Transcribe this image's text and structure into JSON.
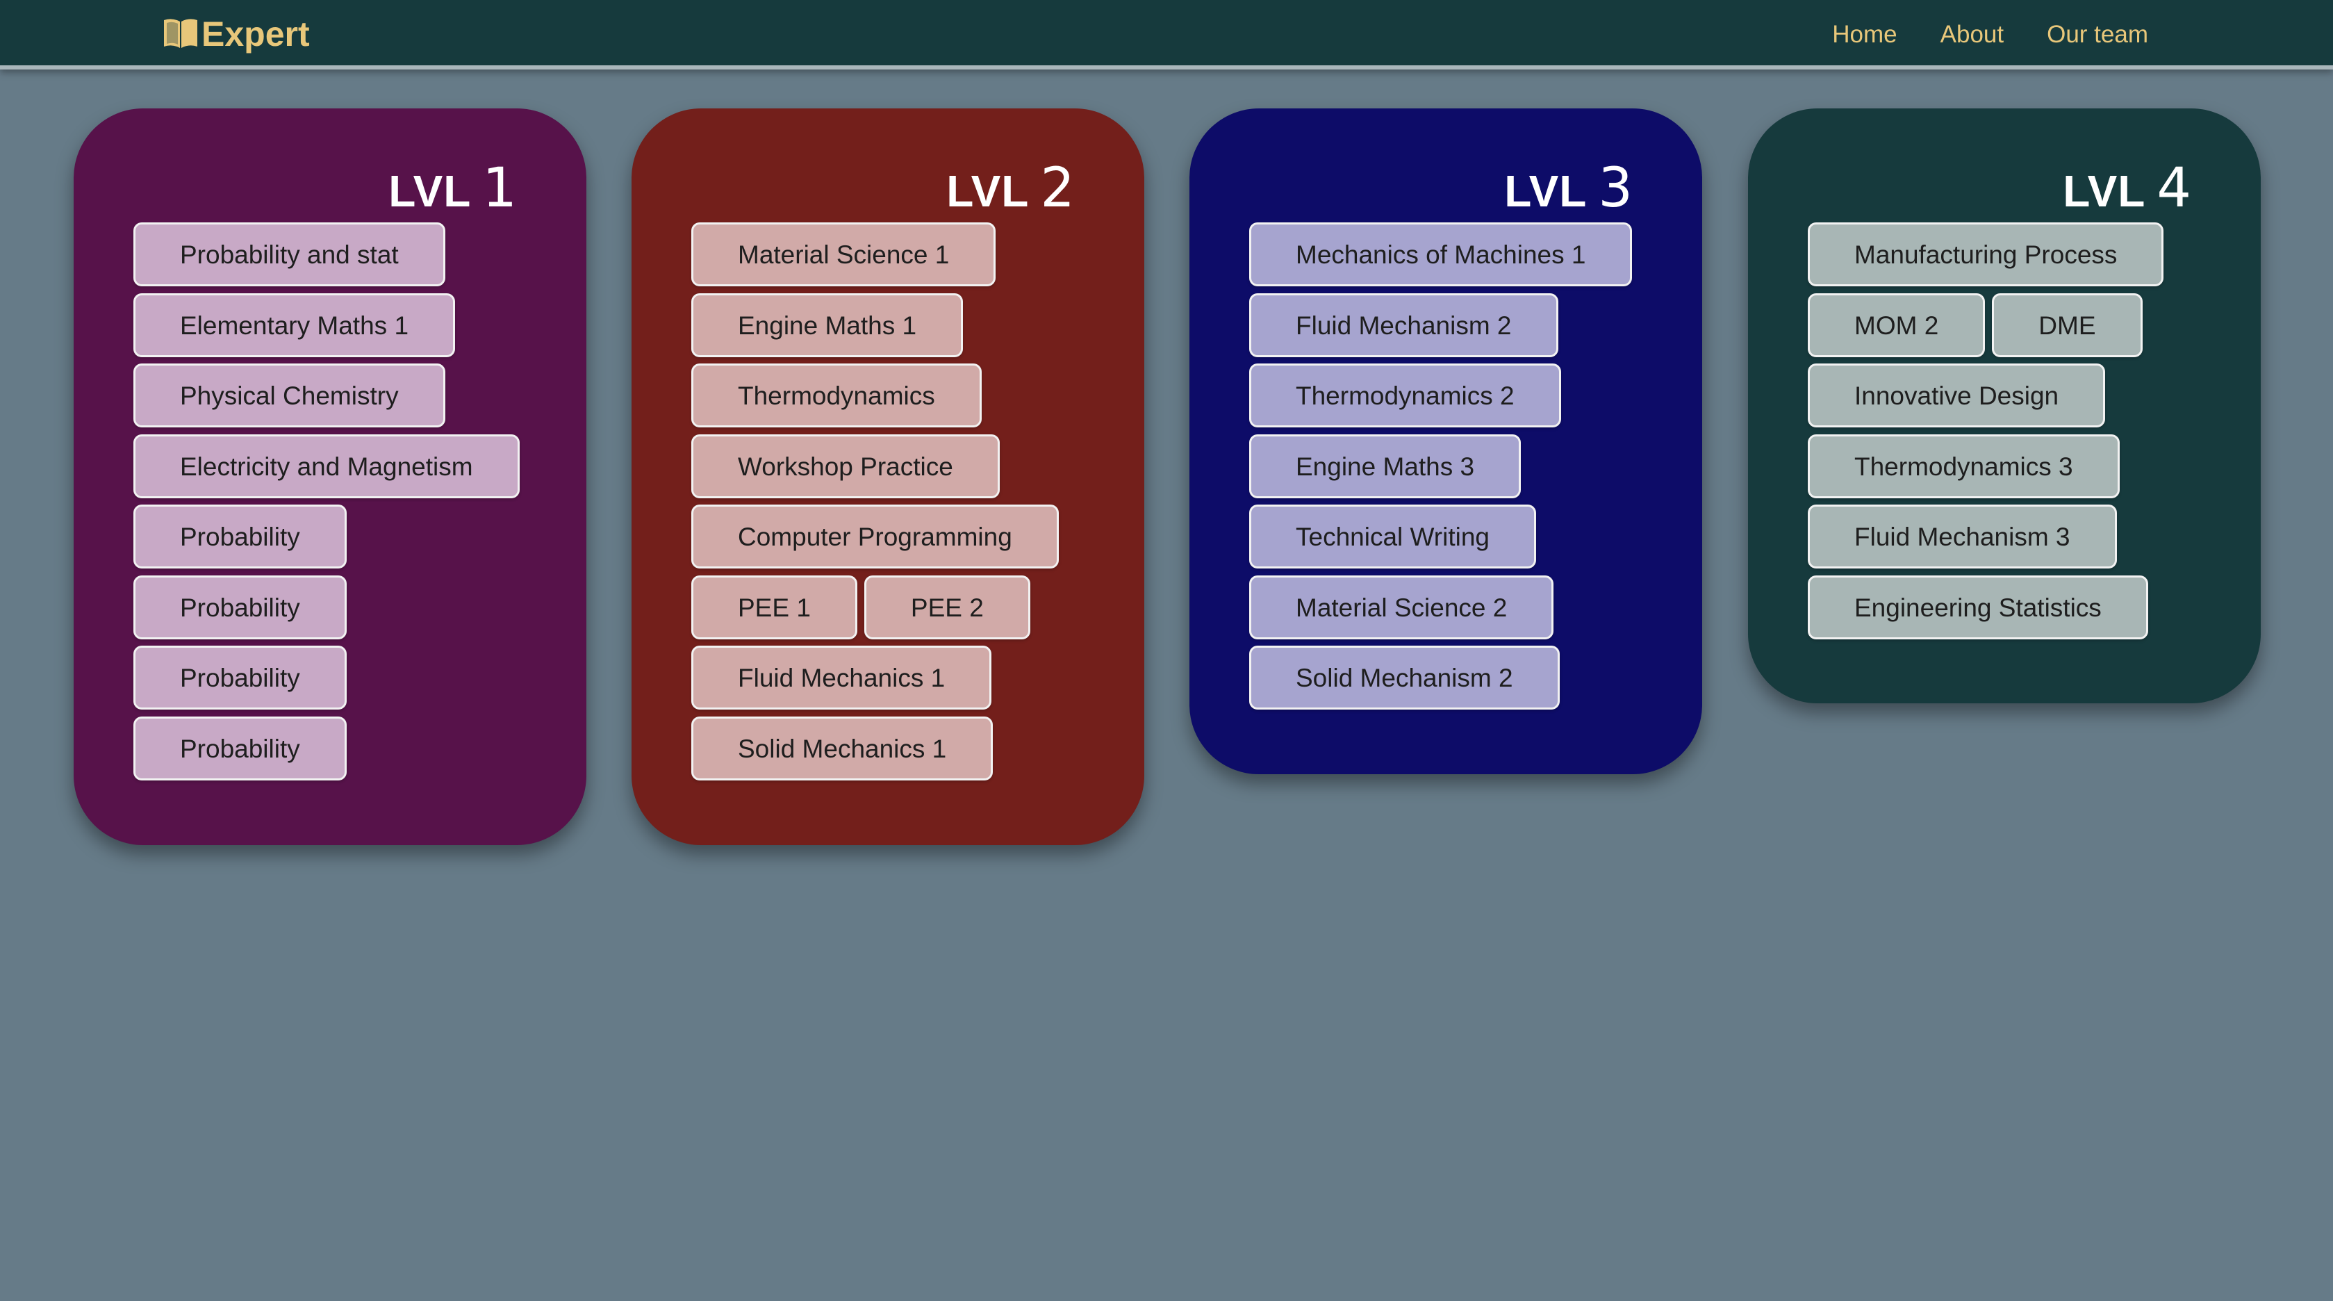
{
  "nav": {
    "brand": "Expert",
    "links": [
      "Home",
      "About",
      "Our team"
    ]
  },
  "colors": {
    "page_bg": "#667b88",
    "nav_bg": "#163a3d",
    "brand": "#e8c77a",
    "lvl1": "#57124a",
    "lvl2": "#731f1b",
    "lvl3": "#0d0c68",
    "lvl4": "#163a3d",
    "chip1": "#c8a9c6",
    "chip2": "#d1aaa8",
    "chip3": "#a6a4cf",
    "chip4": "#a8b6b5"
  },
  "levels": [
    {
      "label": "LVL",
      "number": "1",
      "rows": [
        [
          "Probability and stat"
        ],
        [
          "Elementary Maths 1"
        ],
        [
          "Physical Chemistry"
        ],
        [
          "Electricity and Magnetism"
        ],
        [
          "Probability"
        ],
        [
          "Probability"
        ],
        [
          "Probability"
        ],
        [
          "Probability"
        ]
      ]
    },
    {
      "label": "LVL",
      "number": "2",
      "rows": [
        [
          "Material Science 1"
        ],
        [
          "Engine Maths 1"
        ],
        [
          "Thermodynamics"
        ],
        [
          "Workshop Practice"
        ],
        [
          "Computer Programming"
        ],
        [
          "PEE 1",
          "PEE 2"
        ],
        [
          "Fluid Mechanics 1"
        ],
        [
          "Solid Mechanics 1"
        ]
      ]
    },
    {
      "label": "LVL",
      "number": "3",
      "rows": [
        [
          "Mechanics of Machines 1"
        ],
        [
          "Fluid Mechanism 2"
        ],
        [
          "Thermodynamics 2"
        ],
        [
          "Engine Maths 3"
        ],
        [
          "Technical Writing"
        ],
        [
          "Material Science 2"
        ],
        [
          "Solid Mechanism 2"
        ]
      ]
    },
    {
      "label": "LVL",
      "number": "4",
      "rows": [
        [
          "Manufacturing Process"
        ],
        [
          "MOM 2",
          "DME"
        ],
        [
          "Innovative Design"
        ],
        [
          "Thermodynamics 3"
        ],
        [
          "Fluid Mechanism 3"
        ],
        [
          "Engineering Statistics"
        ]
      ]
    }
  ]
}
